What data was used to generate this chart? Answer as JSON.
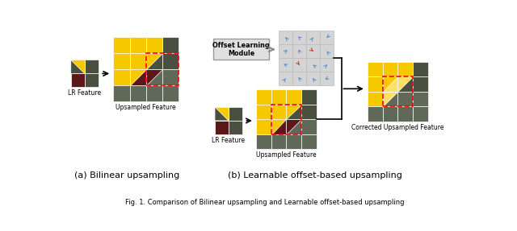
{
  "title": "Fig. 1. Comparison of Bilinear upsampling and Learnable offset-based upsampling",
  "label_a": "(a) Bilinear upsampling",
  "label_b": "(b) Learnable offset-based upsampling",
  "lr_feature_label": "LR Feature",
  "upsampled_label": "Upsampled Feature",
  "corrected_label": "Corrected Upsampled Feature",
  "offset_box_label": "Offset Learning\nModule",
  "bg_color": "#ffffff",
  "Y": "#f5c800",
  "YL": "#ffe066",
  "DB": "#5a1818",
  "DG": "#4a5040",
  "MG": "#606858",
  "LG": "#888878"
}
